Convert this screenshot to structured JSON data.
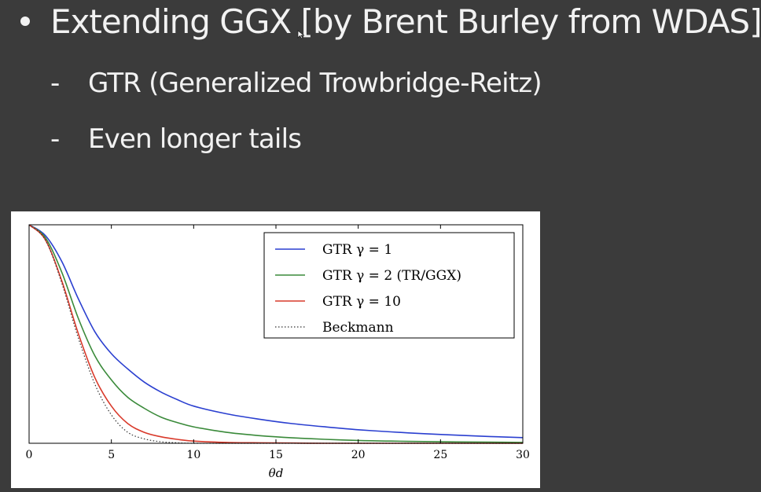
{
  "slide": {
    "bullet": "Extending GGX [by Brent Burley from WDAS]",
    "sub_bullets": [
      "GTR (Generalized Trowbridge-Reitz)",
      "Even longer tails"
    ]
  },
  "chart_data": {
    "type": "line",
    "title": "",
    "xlabel": "θd",
    "ylabel": "",
    "xlim": [
      0,
      30
    ],
    "ylim": [
      0,
      1
    ],
    "x_ticks": [
      "0",
      "5",
      "10",
      "15",
      "20",
      "25",
      "30"
    ],
    "grid": false,
    "legend": "top-right",
    "x": [
      0,
      1,
      2,
      3,
      4,
      5,
      6,
      7,
      8,
      9,
      10,
      12,
      14,
      16,
      18,
      20,
      22,
      24,
      26,
      28,
      30
    ],
    "series": [
      {
        "name": "GTR γ = 1",
        "color": "#2a3fd0",
        "style": "solid",
        "values": [
          1.0,
          0.95,
          0.83,
          0.66,
          0.51,
          0.41,
          0.34,
          0.28,
          0.235,
          0.2,
          0.17,
          0.135,
          0.11,
          0.09,
          0.075,
          0.062,
          0.052,
          0.044,
          0.037,
          0.031,
          0.026
        ]
      },
      {
        "name": "GTR γ = 2 (TR/GGX)",
        "color": "#3a8a3a",
        "style": "solid",
        "values": [
          1.0,
          0.94,
          0.78,
          0.57,
          0.4,
          0.29,
          0.21,
          0.16,
          0.12,
          0.095,
          0.075,
          0.05,
          0.035,
          0.025,
          0.018,
          0.013,
          0.01,
          0.008,
          0.006,
          0.005,
          0.004
        ]
      },
      {
        "name": "GTR γ = 10",
        "color": "#d93a2b",
        "style": "solid",
        "values": [
          1.0,
          0.93,
          0.74,
          0.5,
          0.3,
          0.17,
          0.09,
          0.05,
          0.03,
          0.018,
          0.01,
          0.004,
          0.002,
          0.001,
          0,
          0,
          0,
          0,
          0,
          0,
          0
        ]
      },
      {
        "name": "Beckmann",
        "color": "#333333",
        "style": "dotted",
        "values": [
          1.0,
          0.93,
          0.73,
          0.48,
          0.27,
          0.13,
          0.05,
          0.02,
          0.007,
          0.002,
          0,
          0,
          0,
          0,
          0,
          0,
          0,
          0,
          0,
          0,
          0
        ]
      }
    ]
  }
}
